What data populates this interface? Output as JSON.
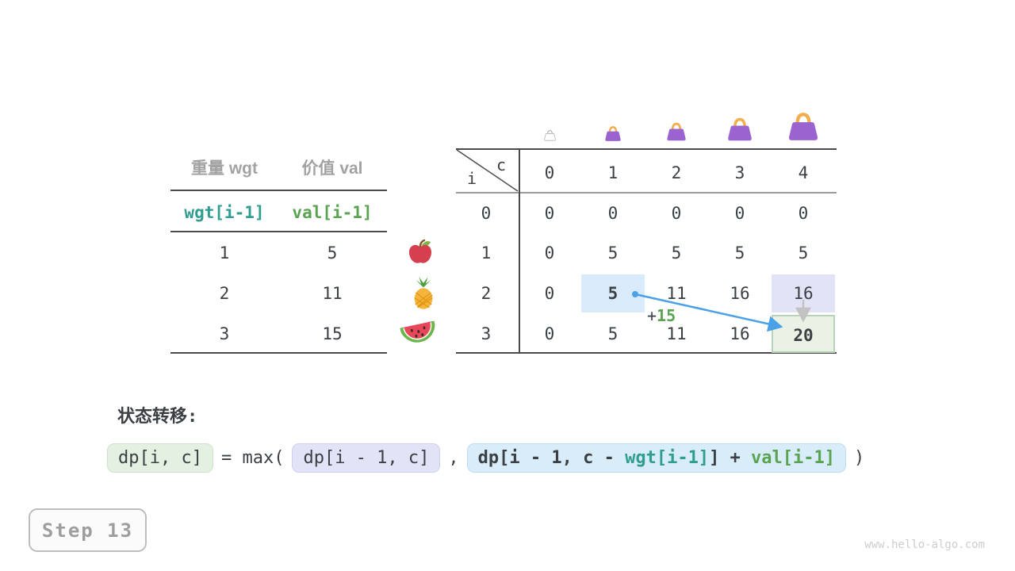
{
  "items_table": {
    "headers": [
      "重量 wgt",
      "价值 val"
    ],
    "code_row": [
      "wgt[i-1]",
      "val[i-1]"
    ],
    "rows": [
      [
        "1",
        "5"
      ],
      [
        "2",
        "11"
      ],
      [
        "3",
        "15"
      ]
    ],
    "fruit_icons": [
      "apple",
      "pineapple",
      "watermelon"
    ]
  },
  "dp_table": {
    "corner": {
      "row_var": "i",
      "col_var": "c"
    },
    "col_headers": [
      "0",
      "1",
      "2",
      "3",
      "4"
    ],
    "row_headers": [
      "0",
      "1",
      "2",
      "3"
    ],
    "rows": [
      [
        "0",
        "0",
        "0",
        "0",
        "0"
      ],
      [
        "0",
        "5",
        "5",
        "5",
        "5"
      ],
      [
        "0",
        "5",
        "11",
        "16",
        "16"
      ],
      [
        "0",
        "5",
        "11",
        "16",
        "20"
      ]
    ],
    "highlights": [
      {
        "row": 2,
        "col": 1,
        "style": "blue",
        "bold": true
      },
      {
        "row": 2,
        "col": 4,
        "style": "lavender",
        "bold": false
      },
      {
        "row": 3,
        "col": 4,
        "style": "green",
        "bold": true
      }
    ],
    "bag_icons": [
      "bag-capacity-0",
      "bag-capacity-1",
      "bag-capacity-2",
      "bag-capacity-3",
      "bag-capacity-4"
    ]
  },
  "annotation": {
    "plus": "+",
    "value": "15"
  },
  "transition": {
    "heading": "状态转移:",
    "lhs": "dp[i, c]",
    "eq_func": "= max(",
    "arg1": "dp[i - 1, c]",
    "separator": ",",
    "arg2_p1": "dp[i - 1, c - ",
    "arg2_wgt": "wgt[i-1]",
    "arg2_p2": "] + ",
    "arg2_val": "val[i-1]",
    "close": ")"
  },
  "step_badge": {
    "label": "Step 13"
  },
  "watermark": {
    "text": "www.hello-algo.com"
  },
  "colors": {
    "ink": "#3b4045",
    "muted_gray": "#a2a2a2",
    "line_dark": "#4a4a4a",
    "line_gray": "#9a9a9a",
    "accent_teal": "#2f9d8f",
    "accent_green": "#5aa350",
    "arrow_blue": "#4ba1e8",
    "arrow_gray": "#c2c2c2",
    "highlight_blue": "#d9ebfa",
    "highlight_lavender": "#e3e3f8",
    "highlight_green_bg": "#e9f2e5",
    "highlight_green_border": "#b9d3ba",
    "formula_green_bg": "#e4f0e1",
    "formula_green_border": "#cfe3cc",
    "formula_lavender_bg": "#e3e3f8",
    "formula_lavender_border": "#cfcfef",
    "formula_blue_bg": "#d9ecfa",
    "formula_blue_border": "#bedcf0",
    "bag_purple": "#9a63cf",
    "bag_handle": "#f2ae4e",
    "step_border": "#bdbdbd",
    "step_text": "#9e9e9e",
    "watermark_gray": "#cdcdcd"
  }
}
